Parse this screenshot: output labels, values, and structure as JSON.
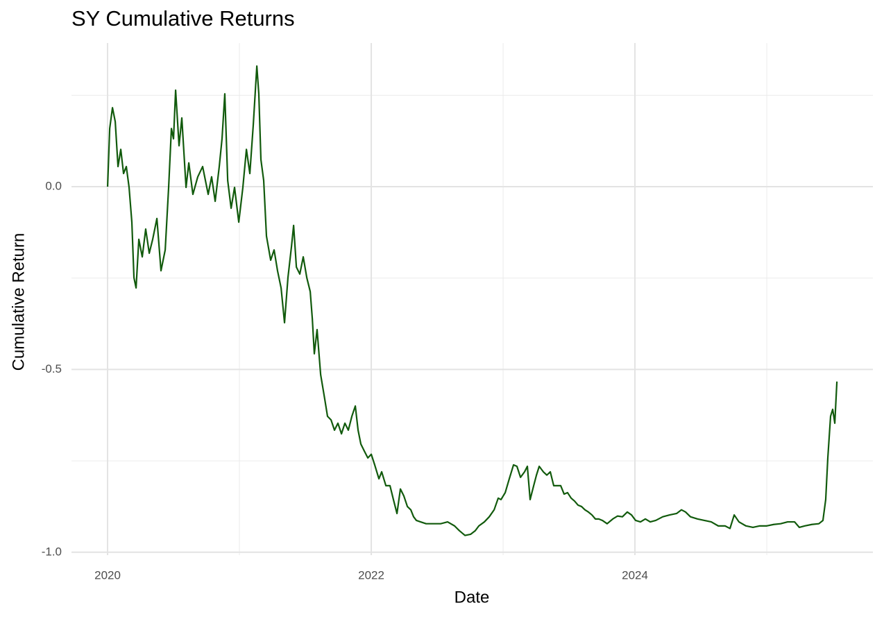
{
  "chart_data": {
    "type": "line",
    "title": "SY Cumulative Returns",
    "x_label": "Date",
    "y_label": "Cumulative Return",
    "xlim": [
      2019.726,
      2025.805
    ],
    "xticks": [
      2020,
      2022,
      2024
    ],
    "ylim": [
      -1.008,
      0.393
    ],
    "yticks": [
      {
        "value": -1.0,
        "label": "-1.0"
      },
      {
        "value": -0.5,
        "label": "-0.5"
      },
      {
        "value": 0.0,
        "label": "0.0"
      }
    ],
    "grid": true,
    "x": [
      2020,
      2020.016,
      2020.037,
      2020.058,
      2020.079,
      2020.1,
      2020.121,
      2020.142,
      2020.163,
      2020.184,
      2020.2,
      2020.216,
      2020.237,
      2020.263,
      2020.289,
      2020.316,
      2020.342,
      2020.374,
      2020.405,
      2020.437,
      2020.463,
      2020.484,
      2020.5,
      2020.516,
      2020.542,
      2020.563,
      2020.595,
      2020.616,
      2020.647,
      2020.684,
      2020.721,
      2020.763,
      2020.789,
      2020.816,
      2020.847,
      2020.868,
      2020.889,
      2020.911,
      2020.937,
      2020.963,
      2020.995,
      2021.026,
      2021.053,
      2021.079,
      2021.105,
      2021.132,
      2021.147,
      2021.163,
      2021.184,
      2021.205,
      2021.237,
      2021.263,
      2021.289,
      2021.316,
      2021.342,
      2021.368,
      2021.395,
      2021.411,
      2021.432,
      2021.458,
      2021.484,
      2021.511,
      2021.537,
      2021.553,
      2021.568,
      2021.589,
      2021.616,
      2021.647,
      2021.668,
      2021.695,
      2021.721,
      2021.747,
      2021.774,
      2021.8,
      2021.826,
      2021.853,
      2021.879,
      2021.9,
      2021.921,
      2021.947,
      2021.974,
      2022,
      2022.026,
      2022.058,
      2022.079,
      2022.111,
      2022.142,
      2022.168,
      2022.195,
      2022.221,
      2022.247,
      2022.274,
      2022.3,
      2022.321,
      2022.342,
      2022.374,
      2022.416,
      2022.474,
      2022.526,
      2022.579,
      2022.632,
      2022.668,
      2022.711,
      2022.753,
      2022.789,
      2022.816,
      2022.858,
      2022.895,
      2022.932,
      2022.963,
      2022.984,
      2023.016,
      2023.047,
      2023.079,
      2023.105,
      2023.132,
      2023.163,
      2023.184,
      2023.205,
      2023.232,
      2023.253,
      2023.274,
      2023.305,
      2023.332,
      2023.358,
      2023.384,
      2023.411,
      2023.437,
      2023.463,
      2023.489,
      2023.516,
      2023.542,
      2023.568,
      2023.595,
      2023.621,
      2023.647,
      2023.674,
      2023.7,
      2023.726,
      2023.753,
      2023.789,
      2023.832,
      2023.868,
      2023.905,
      2023.942,
      2023.974,
      2024.005,
      2024.042,
      2024.079,
      2024.116,
      2024.158,
      2024.211,
      2024.263,
      2024.316,
      2024.353,
      2024.384,
      2024.421,
      2024.474,
      2024.526,
      2024.579,
      2024.632,
      2024.684,
      2024.721,
      2024.753,
      2024.789,
      2024.842,
      2024.895,
      2024.947,
      2025.0,
      2025.053,
      2025.105,
      2025.158,
      2025.211,
      2025.247,
      2025.289,
      2025.342,
      2025.395,
      2025.426,
      2025.447,
      2025.463,
      2025.484,
      2025.5,
      2025.516,
      2025.532
    ],
    "series": [
      {
        "name": "SY",
        "color": "#115a0c",
        "values": [
          0,
          0.159,
          0.216,
          0.178,
          0.055,
          0.102,
          0.036,
          0.055,
          -0.002,
          -0.097,
          -0.249,
          -0.277,
          -0.144,
          -0.192,
          -0.116,
          -0.182,
          -0.144,
          -0.087,
          -0.23,
          -0.173,
          -0.002,
          0.159,
          0.131,
          0.264,
          0.112,
          0.188,
          -0.002,
          0.065,
          -0.021,
          0.027,
          0.055,
          -0.021,
          0.027,
          -0.04,
          0.055,
          0.131,
          0.254,
          0.017,
          -0.059,
          -0.002,
          -0.097,
          -0.002,
          0.102,
          0.036,
          0.169,
          0.33,
          0.254,
          0.074,
          0.017,
          -0.135,
          -0.201,
          -0.173,
          -0.23,
          -0.277,
          -0.372,
          -0.249,
          -0.163,
          -0.106,
          -0.22,
          -0.239,
          -0.192,
          -0.249,
          -0.287,
          -0.362,
          -0.457,
          -0.391,
          -0.514,
          -0.581,
          -0.628,
          -0.638,
          -0.666,
          -0.647,
          -0.676,
          -0.647,
          -0.666,
          -0.628,
          -0.6,
          -0.666,
          -0.704,
          -0.723,
          -0.742,
          -0.732,
          -0.761,
          -0.799,
          -0.78,
          -0.818,
          -0.818,
          -0.856,
          -0.894,
          -0.827,
          -0.846,
          -0.875,
          -0.884,
          -0.903,
          -0.913,
          -0.917,
          -0.922,
          -0.922,
          -0.922,
          -0.917,
          -0.928,
          -0.941,
          -0.954,
          -0.951,
          -0.941,
          -0.928,
          -0.917,
          -0.903,
          -0.884,
          -0.852,
          -0.856,
          -0.837,
          -0.799,
          -0.761,
          -0.765,
          -0.795,
          -0.78,
          -0.765,
          -0.856,
          -0.818,
          -0.789,
          -0.765,
          -0.78,
          -0.789,
          -0.78,
          -0.818,
          -0.818,
          -0.818,
          -0.841,
          -0.837,
          -0.852,
          -0.86,
          -0.871,
          -0.875,
          -0.884,
          -0.89,
          -0.898,
          -0.909,
          -0.909,
          -0.913,
          -0.922,
          -0.909,
          -0.901,
          -0.903,
          -0.89,
          -0.898,
          -0.913,
          -0.917,
          -0.909,
          -0.917,
          -0.913,
          -0.903,
          -0.898,
          -0.894,
          -0.884,
          -0.89,
          -0.903,
          -0.909,
          -0.913,
          -0.917,
          -0.928,
          -0.928,
          -0.935,
          -0.898,
          -0.917,
          -0.928,
          -0.932,
          -0.928,
          -0.928,
          -0.924,
          -0.922,
          -0.917,
          -0.917,
          -0.932,
          -0.928,
          -0.924,
          -0.922,
          -0.913,
          -0.856,
          -0.742,
          -0.628,
          -0.609,
          -0.647,
          -0.533
        ]
      }
    ]
  }
}
